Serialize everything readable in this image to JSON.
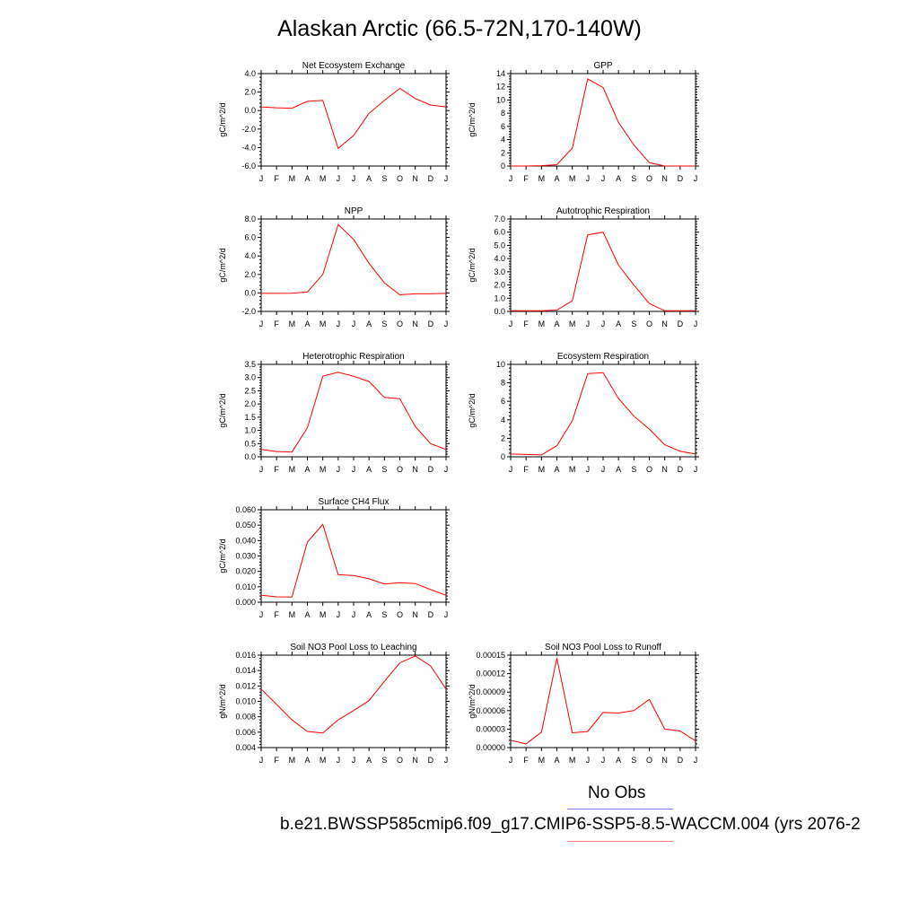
{
  "title": "Alaskan Arctic (66.5-72N,170-140W)",
  "months": [
    "J",
    "F",
    "M",
    "A",
    "M",
    "J",
    "J",
    "A",
    "S",
    "O",
    "N",
    "D",
    "J"
  ],
  "legend": {
    "obs_label": "No Obs",
    "obs_color": "#8080ff",
    "model_label": "b.e21.BWSSP585cmip6.f09_g17.CMIP6-SSP5-8.5-WACCM.004 (yrs 2076-2",
    "model_color": "#ff0000"
  },
  "chart_data": [
    {
      "type": "line",
      "title": "Net Ecosystem Exchange",
      "ylabel": "gC/m^2/d",
      "ylim": [
        -6.0,
        4.0
      ],
      "yticks": [
        "-6.0",
        "-4.0",
        "-2.0",
        "0.0",
        "2.0",
        "4.0"
      ],
      "x": [
        "J",
        "F",
        "M",
        "A",
        "M",
        "J",
        "J",
        "A",
        "S",
        "O",
        "N",
        "D",
        "J"
      ],
      "series": [
        {
          "values": [
            0.4,
            0.3,
            0.25,
            1.0,
            1.1,
            -4.1,
            -2.7,
            -0.3,
            1.1,
            2.4,
            1.3,
            0.6,
            0.4
          ]
        }
      ]
    },
    {
      "type": "line",
      "title": "GPP",
      "ylabel": "gC/m^2/d",
      "ylim": [
        0,
        14
      ],
      "yticks": [
        "0",
        "2",
        "4",
        "6",
        "8",
        "10",
        "12",
        "14"
      ],
      "x": [
        "J",
        "F",
        "M",
        "A",
        "M",
        "J",
        "J",
        "A",
        "S",
        "O",
        "N",
        "D",
        "J"
      ],
      "series": [
        {
          "values": [
            0.0,
            0.0,
            0.05,
            0.2,
            2.7,
            13.2,
            11.9,
            6.6,
            3.2,
            0.5,
            0.0,
            0.0,
            0.0
          ]
        }
      ]
    },
    {
      "type": "line",
      "title": "NPP",
      "ylabel": "gC/m^2/d",
      "ylim": [
        -2.0,
        8.0
      ],
      "yticks": [
        "-2.0",
        "0.0",
        "2.0",
        "4.0",
        "6.0",
        "8.0"
      ],
      "x": [
        "J",
        "F",
        "M",
        "A",
        "M",
        "J",
        "J",
        "A",
        "S",
        "O",
        "N",
        "D",
        "J"
      ],
      "series": [
        {
          "values": [
            -0.05,
            -0.05,
            -0.03,
            0.1,
            2.0,
            7.4,
            5.8,
            3.2,
            1.1,
            -0.2,
            -0.1,
            -0.1,
            -0.05
          ]
        }
      ]
    },
    {
      "type": "line",
      "title": "Autotrophic Respiration",
      "ylabel": "gC/m^2/d",
      "ylim": [
        0.0,
        7.0
      ],
      "yticks": [
        "0.0",
        "1.0",
        "2.0",
        "3.0",
        "4.0",
        "5.0",
        "6.0",
        "7.0"
      ],
      "x": [
        "J",
        "F",
        "M",
        "A",
        "M",
        "J",
        "J",
        "A",
        "S",
        "O",
        "N",
        "D",
        "J"
      ],
      "series": [
        {
          "values": [
            0.05,
            0.05,
            0.05,
            0.1,
            0.8,
            5.8,
            6.0,
            3.5,
            2.0,
            0.6,
            0.05,
            0.05,
            0.05
          ]
        }
      ]
    },
    {
      "type": "line",
      "title": "Heterotrophic Respiration",
      "ylabel": "gC/m^2/d",
      "ylim": [
        0.0,
        3.5
      ],
      "yticks": [
        "0.0",
        "0.5",
        "1.0",
        "1.5",
        "2.0",
        "2.5",
        "3.0",
        "3.5"
      ],
      "x": [
        "J",
        "F",
        "M",
        "A",
        "M",
        "J",
        "J",
        "A",
        "S",
        "O",
        "N",
        "D",
        "J"
      ],
      "series": [
        {
          "values": [
            0.28,
            0.2,
            0.18,
            1.1,
            3.05,
            3.2,
            3.05,
            2.85,
            2.25,
            2.2,
            1.15,
            0.5,
            0.28
          ]
        }
      ]
    },
    {
      "type": "line",
      "title": "Ecosystem Respiration",
      "ylabel": "gC/m^2/d",
      "ylim": [
        0,
        10
      ],
      "yticks": [
        "0",
        "2",
        "4",
        "6",
        "8",
        "10"
      ],
      "x": [
        "J",
        "F",
        "M",
        "A",
        "M",
        "J",
        "J",
        "A",
        "S",
        "O",
        "N",
        "D",
        "J"
      ],
      "series": [
        {
          "values": [
            0.3,
            0.25,
            0.2,
            1.2,
            3.9,
            9.0,
            9.1,
            6.3,
            4.4,
            3.0,
            1.3,
            0.6,
            0.3
          ]
        }
      ]
    },
    {
      "type": "line",
      "title": "Surface CH4 Flux",
      "ylabel": "gC/m^2/d",
      "ylim": [
        0.0,
        0.06
      ],
      "yticks": [
        "0.000",
        "0.010",
        "0.020",
        "0.030",
        "0.040",
        "0.050",
        "0.060"
      ],
      "x": [
        "J",
        "F",
        "M",
        "A",
        "M",
        "J",
        "J",
        "A",
        "S",
        "O",
        "N",
        "D",
        "J"
      ],
      "series": [
        {
          "values": [
            0.0045,
            0.0035,
            0.0033,
            0.039,
            0.0505,
            0.0178,
            0.0173,
            0.0152,
            0.0118,
            0.0127,
            0.0121,
            0.0082,
            0.0045
          ]
        }
      ]
    },
    {
      "type": "line",
      "title": "Soil NO3 Pool Loss to Leaching",
      "ylabel": "gN/m^2/d",
      "ylim": [
        0.004,
        0.016
      ],
      "yticks": [
        "0.004",
        "0.006",
        "0.008",
        "0.010",
        "0.012",
        "0.014",
        "0.016"
      ],
      "x": [
        "J",
        "F",
        "M",
        "A",
        "M",
        "J",
        "J",
        "A",
        "S",
        "O",
        "N",
        "D",
        "J"
      ],
      "series": [
        {
          "values": [
            0.0116,
            0.0096,
            0.0076,
            0.0061,
            0.0059,
            0.0076,
            0.0088,
            0.0101,
            0.0126,
            0.015,
            0.0159,
            0.0146,
            0.0116
          ]
        }
      ]
    },
    {
      "type": "line",
      "title": "Soil NO3 Pool Loss to Runoff",
      "ylabel": "gN/m^2/d",
      "ylim": [
        0.0,
        0.00015
      ],
      "yticks": [
        "0.00000",
        "0.00003",
        "0.00006",
        "0.00009",
        "0.00012",
        "0.00015"
      ],
      "x": [
        "J",
        "F",
        "M",
        "A",
        "M",
        "J",
        "J",
        "A",
        "S",
        "O",
        "N",
        "D",
        "J"
      ],
      "series": [
        {
          "values": [
            1.2e-05,
            6e-06,
            2.5e-05,
            0.000145,
            2.4e-05,
            2.6e-05,
            5.7e-05,
            5.6e-05,
            6e-05,
            7.8e-05,
            3e-05,
            2.7e-05,
            1.1e-05
          ]
        }
      ]
    }
  ]
}
